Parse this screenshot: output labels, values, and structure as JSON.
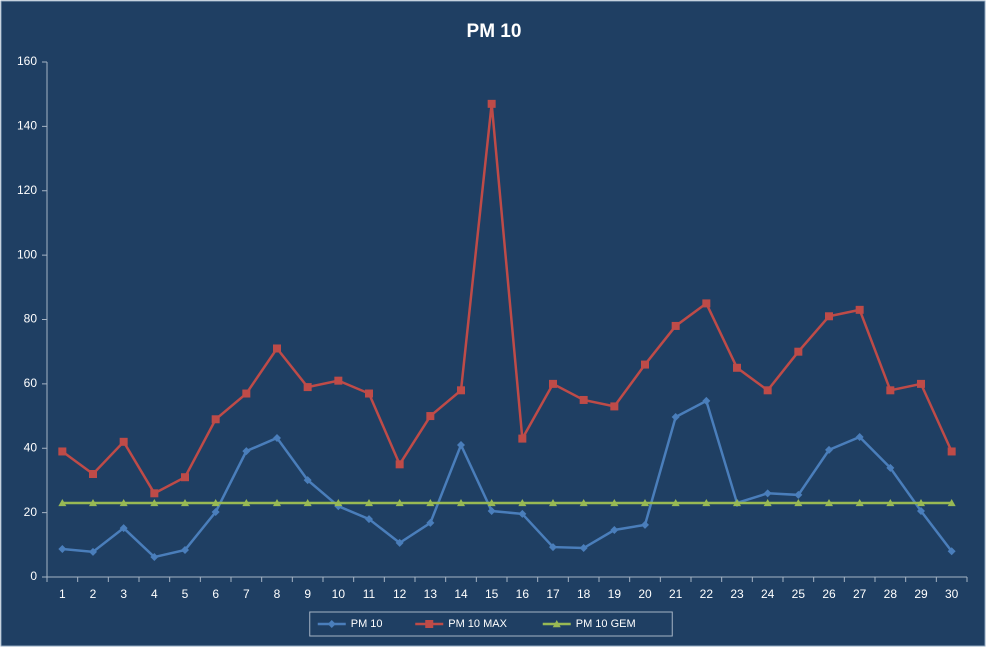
{
  "chart_data": {
    "type": "line",
    "title": "PM 10",
    "categories": [
      "1",
      "2",
      "3",
      "4",
      "5",
      "6",
      "7",
      "8",
      "9",
      "10",
      "11",
      "12",
      "13",
      "14",
      "15",
      "16",
      "17",
      "18",
      "19",
      "20",
      "21",
      "22",
      "23",
      "24",
      "25",
      "26",
      "27",
      "28",
      "29",
      "30"
    ],
    "series": [
      {
        "name": "PM 10",
        "color": "#4a7ebb",
        "marker": "diamond",
        "values": [
          8.7,
          7.8,
          15.2,
          6.2,
          8.4,
          20.2,
          39.1,
          43.2,
          30.1,
          22,
          18,
          10.6,
          16.8,
          41,
          20.5,
          19.6,
          9.3,
          9,
          14.6,
          16.2,
          49.7,
          54.7,
          23,
          26,
          25.5,
          39.5,
          43.5,
          33.9,
          20.5,
          8
        ]
      },
      {
        "name": "PM 10 MAX",
        "color": "#be4b48",
        "marker": "square",
        "values": [
          39,
          32,
          42,
          26,
          31,
          49,
          57,
          71,
          59,
          61,
          57,
          35,
          50,
          58,
          147,
          43,
          60,
          55,
          53,
          66,
          78,
          85,
          65,
          58,
          70,
          81,
          83,
          58,
          60,
          39
        ]
      },
      {
        "name": "PM 10 GEM",
        "color": "#98b954",
        "marker": "triangle",
        "values": [
          23,
          23,
          23,
          23,
          23,
          23,
          23,
          23,
          23,
          23,
          23,
          23,
          23,
          23,
          23,
          23,
          23,
          23,
          23,
          23,
          23,
          23,
          23,
          23,
          23,
          23,
          23,
          23,
          23,
          23
        ]
      }
    ],
    "ylim": [
      0,
      160
    ],
    "yticks": [
      0,
      20,
      40,
      60,
      80,
      100,
      120,
      140,
      160
    ],
    "grid": false,
    "legend": "bottom"
  }
}
